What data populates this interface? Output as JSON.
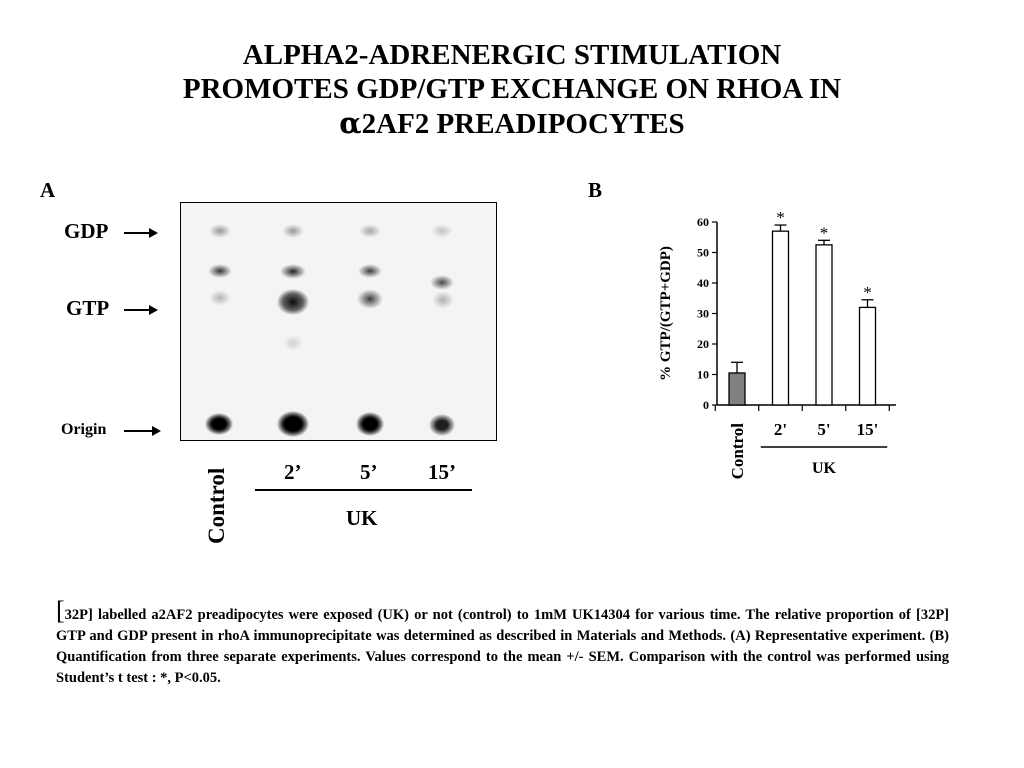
{
  "title": {
    "line1": "ALPHA2-ADRENERGIC STIMULATION",
    "line2": "PROMOTES GDP/GTP EXCHANGE ON RHOA IN",
    "line3_symbol": "α",
    "line3_rest": "2AF2 PREADIPOCYTES"
  },
  "panel_a": {
    "letter": "A",
    "markers": {
      "gdp": "GDP",
      "gtp": "GTP",
      "origin": "Origin"
    },
    "lanes": [
      "Control",
      "2’",
      "5’",
      "15’"
    ],
    "group_label": "UK"
  },
  "panel_b": {
    "letter": "B"
  },
  "chart_data": {
    "type": "bar",
    "categories": [
      "Control",
      "2'",
      "5'",
      "15'"
    ],
    "values": [
      10.5,
      57,
      52.5,
      32
    ],
    "errors": [
      3.5,
      2,
      1.5,
      2.5
    ],
    "significance": [
      "",
      "*",
      "*",
      "*"
    ],
    "colors": [
      "#808080",
      "#ffffff",
      "#ffffff",
      "#ffffff"
    ],
    "ylabel": "% GTP/(GTP+GDP)",
    "yticks": [
      0,
      10,
      20,
      30,
      40,
      50,
      60
    ],
    "ylim": [
      0,
      60
    ],
    "group_label": "UK"
  },
  "caption": {
    "bracket": "[",
    "text": "32P] labelled a2AF2 preadipocytes were exposed (UK) or not (control) to 1mM UK14304 for various time. The relative proportion of  [32P] GTP and GDP present in rhoA immunoprecipitate was determined as described in Materials and Methods. (A) Representative experiment. (B) Quantification from three separate experiments. Values correspond to the mean +/- SEM. Comparison with the control was performed using Student’s t test : *, P<0.05."
  }
}
